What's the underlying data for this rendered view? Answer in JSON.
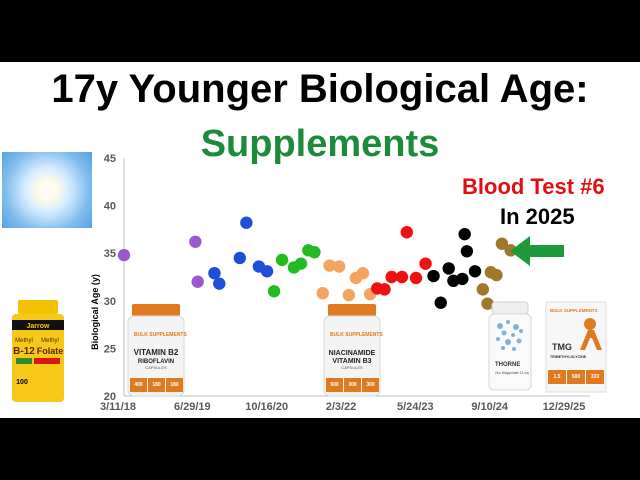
{
  "title_line1": "17y Younger Biological Age:",
  "title_line2": "Supplements",
  "annotation": {
    "line1": "Blood Test #6",
    "line2": "In 2025"
  },
  "colors": {
    "title_green": "#1e8a3c",
    "annotation_red": "#e01010",
    "arrow_green": "#1e9a3c"
  },
  "chart_data": {
    "type": "scatter",
    "ylabel": "Biological Age (y)",
    "xlabel": "",
    "ylim": [
      20,
      45
    ],
    "yticks": [
      "20",
      "25",
      "30",
      "35",
      "40",
      "45"
    ],
    "xticks": [
      "3/11/18",
      "6/29/19",
      "10/16/20",
      "2/3/22",
      "5/24/23",
      "9/10/24",
      "12/29/25"
    ],
    "grid": false,
    "series": [
      {
        "color": "#9b59d0",
        "points": [
          [
            "2018-03-11",
            34.8
          ],
          [
            "2019-06-10",
            36.2
          ],
          [
            "2019-06-25",
            32.0
          ]
        ]
      },
      {
        "color": "#1f4fd8",
        "points": [
          [
            "2019-10-10",
            32.9
          ],
          [
            "2019-11-10",
            31.8
          ],
          [
            "2020-03-20",
            34.5
          ],
          [
            "2020-05-01",
            38.2
          ],
          [
            "2020-07-20",
            33.6
          ],
          [
            "2020-09-10",
            33.1
          ]
        ]
      },
      {
        "color": "#22bb22",
        "points": [
          [
            "2020-10-25",
            31.0
          ],
          [
            "2020-12-15",
            34.3
          ],
          [
            "2021-03-01",
            33.5
          ],
          [
            "2021-04-15",
            33.9
          ],
          [
            "2021-06-01",
            35.3
          ],
          [
            "2021-07-10",
            35.1
          ]
        ]
      },
      {
        "color": "#f4a460",
        "points": [
          [
            "2021-09-01",
            30.8
          ],
          [
            "2021-10-15",
            33.7
          ],
          [
            "2021-12-15",
            33.6
          ],
          [
            "2022-02-15",
            30.6
          ],
          [
            "2022-04-01",
            32.4
          ],
          [
            "2022-05-15",
            32.9
          ],
          [
            "2022-07-01",
            30.7
          ]
        ]
      },
      {
        "color": "#ee1111",
        "points": [
          [
            "2022-08-15",
            31.3
          ],
          [
            "2022-10-01",
            31.2
          ],
          [
            "2022-11-15",
            32.5
          ],
          [
            "2023-01-20",
            32.5
          ],
          [
            "2023-02-20",
            37.2
          ],
          [
            "2023-04-20",
            32.4
          ],
          [
            "2023-06-20",
            33.9
          ]
        ]
      },
      {
        "color": "#000000",
        "points": [
          [
            "2023-08-10",
            32.6
          ],
          [
            "2023-09-25",
            29.8
          ],
          [
            "2023-11-15",
            33.4
          ],
          [
            "2023-12-15",
            32.1
          ],
          [
            "2024-02-10",
            32.3
          ],
          [
            "2024-02-25",
            37.0
          ],
          [
            "2024-03-10",
            35.2
          ],
          [
            "2024-05-01",
            33.1
          ]
        ]
      },
      {
        "color": "#a0782a",
        "points": [
          [
            "2024-06-20",
            31.2
          ],
          [
            "2024-07-20",
            29.7
          ],
          [
            "2024-08-10",
            33.0
          ],
          [
            "2024-09-15",
            32.7
          ],
          [
            "2024-10-20",
            36.0
          ],
          [
            "2024-12-15",
            35.3
          ]
        ]
      }
    ]
  },
  "products": {
    "jarrow": {
      "brand": "Jarrow",
      "line1": "Methyl",
      "line2": "B-12",
      "line3": "Methyl",
      "line4": "Folate",
      "count": "100"
    },
    "b2": {
      "brand": "BULK SUPPLEMENTS",
      "name1": "VITAMIN B2",
      "name2": "RIBOFLAVIN",
      "sub": "CAPSULES",
      "s1": "400",
      "s2": "180",
      "s3": "180"
    },
    "b3": {
      "brand": "BULK SUPPLEMENTS",
      "name1": "NIACINAMIDE",
      "name2": "VITAMIN B3",
      "sub": "CAPSULES",
      "s1": "500",
      "s2": "300",
      "s3": "300"
    },
    "thorne": {
      "brand": "THORNE",
      "desc": "Zinc Bisglycinate 15 mg"
    },
    "tmg": {
      "brand": "BULK SUPPLEMENTS",
      "name1": "TMG",
      "name2": "TRIMETHYLGLYCINE",
      "s1": "1.5",
      "s2": "500",
      "s3": "333"
    }
  }
}
